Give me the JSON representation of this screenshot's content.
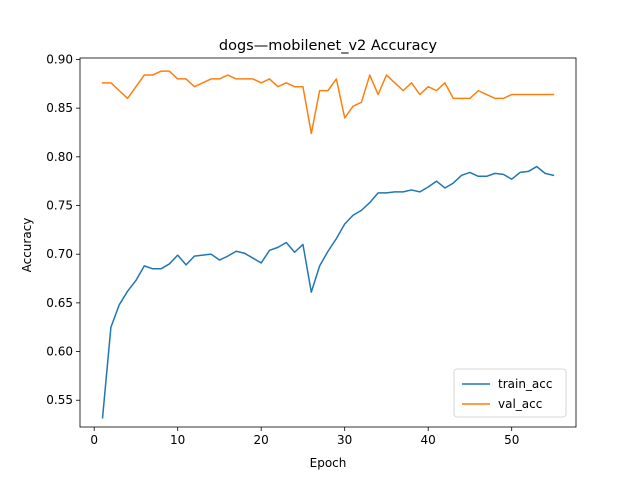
{
  "chart_data": {
    "type": "line",
    "title": "dogs—mobilenet_v2 Accuracy",
    "xlabel": "Epoch",
    "ylabel": "Accuracy",
    "xlim": [
      -1.7,
      57.7
    ],
    "ylim": [
      0.5225,
      0.9015
    ],
    "x_ticks": [
      0,
      10,
      20,
      30,
      40,
      50
    ],
    "y_ticks": [
      0.55,
      0.6,
      0.65,
      0.7,
      0.75,
      0.8,
      0.85,
      0.9
    ],
    "y_tick_labels": [
      "0.55",
      "0.60",
      "0.65",
      "0.70",
      "0.75",
      "0.80",
      "0.85",
      "0.90"
    ],
    "grid": false,
    "legend_position": "lower-right",
    "series": [
      {
        "name": "train_acc",
        "color": "#1f77b4",
        "x": [
          1,
          2,
          3,
          4,
          5,
          6,
          7,
          8,
          9,
          10,
          11,
          12,
          13,
          14,
          15,
          16,
          17,
          18,
          19,
          20,
          21,
          22,
          23,
          24,
          25,
          26,
          27,
          28,
          29,
          30,
          31,
          32,
          33,
          34,
          35,
          36,
          37,
          38,
          39,
          40,
          41,
          42,
          43,
          44,
          45,
          46,
          47,
          48,
          49,
          50,
          51,
          52,
          53,
          54,
          55
        ],
        "values": [
          0.532,
          0.625,
          0.648,
          0.662,
          0.673,
          0.688,
          0.685,
          0.685,
          0.69,
          0.699,
          0.689,
          0.698,
          0.699,
          0.7,
          0.694,
          0.698,
          0.703,
          0.701,
          0.696,
          0.691,
          0.704,
          0.707,
          0.712,
          0.702,
          0.71,
          0.661,
          0.688,
          0.703,
          0.716,
          0.731,
          0.74,
          0.745,
          0.753,
          0.763,
          0.763,
          0.764,
          0.764,
          0.766,
          0.764,
          0.769,
          0.775,
          0.768,
          0.773,
          0.781,
          0.784,
          0.78,
          0.78,
          0.783,
          0.782,
          0.777,
          0.784,
          0.785,
          0.79,
          0.783,
          0.781
        ]
      },
      {
        "name": "val_acc",
        "color": "#ff7f0e",
        "x": [
          1,
          2,
          3,
          4,
          5,
          6,
          7,
          8,
          9,
          10,
          11,
          12,
          13,
          14,
          15,
          16,
          17,
          18,
          19,
          20,
          21,
          22,
          23,
          24,
          25,
          26,
          27,
          28,
          29,
          30,
          31,
          32,
          33,
          34,
          35,
          36,
          37,
          38,
          39,
          40,
          41,
          42,
          43,
          44,
          45,
          46,
          47,
          48,
          49,
          50,
          51,
          52,
          53,
          54,
          55
        ],
        "values": [
          0.876,
          0.876,
          0.868,
          0.86,
          0.872,
          0.884,
          0.884,
          0.888,
          0.888,
          0.88,
          0.88,
          0.872,
          0.876,
          0.88,
          0.88,
          0.884,
          0.88,
          0.88,
          0.88,
          0.876,
          0.88,
          0.872,
          0.876,
          0.872,
          0.872,
          0.824,
          0.868,
          0.868,
          0.88,
          0.84,
          0.852,
          0.856,
          0.884,
          0.864,
          0.884,
          0.876,
          0.868,
          0.876,
          0.864,
          0.872,
          0.868,
          0.876,
          0.86,
          0.86,
          0.86,
          0.868,
          0.864,
          0.86,
          0.86,
          0.864,
          0.864,
          0.864,
          0.864,
          0.864,
          0.864
        ]
      }
    ]
  }
}
